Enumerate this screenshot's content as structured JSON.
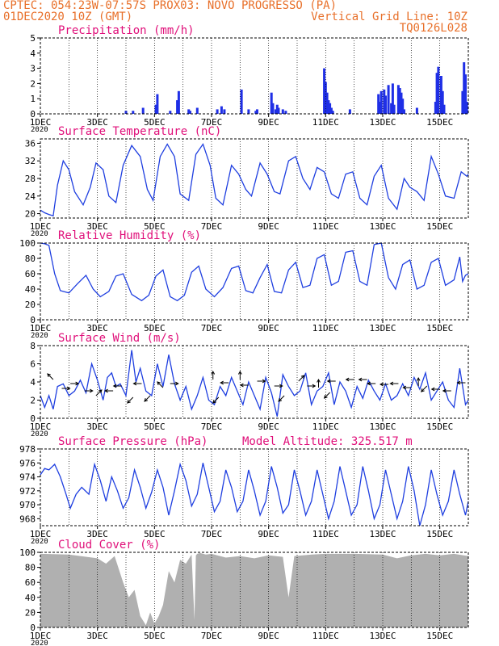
{
  "header": {
    "line1": "CPTEC:  054:23W-07:57S  PROX03: NOVO PROGRESSO (PA)",
    "line2_left": "01DEC2020 10Z (GMT)",
    "line2_right": "Vertical Grid Line: 10Z",
    "line3_right": "TQ0126L028"
  },
  "colors": {
    "header": "#e8702a",
    "title": "#e0107a",
    "series": "#1f3fe0",
    "bar": "#1f2fe6",
    "cloud": "#b0b0b0",
    "axis": "#000000"
  },
  "x_axis": {
    "start_day": 1,
    "end_day": 16,
    "tick_labels": [
      "1DEC",
      "3DEC",
      "5DEC",
      "7DEC",
      "9DEC",
      "11DEC",
      "13DEC",
      "15DEC"
    ],
    "tick_days": [
      1,
      3,
      5,
      7,
      9,
      11,
      13,
      15
    ],
    "year_label": "2020"
  },
  "chart_data": [
    {
      "id": "precip",
      "type": "bar",
      "title": "Precipitation (mm/h)",
      "ylim": [
        0,
        5
      ],
      "yticks": [
        0,
        1,
        2,
        3,
        4,
        5
      ],
      "x": [
        4.0,
        4.25,
        4.6,
        5.05,
        5.1,
        5.55,
        5.8,
        5.85,
        6.2,
        6.25,
        6.5,
        7.2,
        7.35,
        7.45,
        8.05,
        8.3,
        8.55,
        8.6,
        9.1,
        9.15,
        9.25,
        9.3,
        9.35,
        9.5,
        9.6,
        10.95,
        11.0,
        11.05,
        11.1,
        11.15,
        11.2,
        11.25,
        11.85,
        12.85,
        12.9,
        12.95,
        13.05,
        13.1,
        13.2,
        13.3,
        13.35,
        13.4,
        13.55,
        13.6,
        13.65,
        13.7,
        13.75,
        14.2,
        14.85,
        14.9,
        14.95,
        15.05,
        15.1,
        15.15,
        15.8,
        15.85,
        15.9,
        15.95
      ],
      "values": [
        0.2,
        0.2,
        0.4,
        0.6,
        1.3,
        0.2,
        0.9,
        1.5,
        0.3,
        0.2,
        0.4,
        0.3,
        0.5,
        0.3,
        1.6,
        0.3,
        0.2,
        0.3,
        1.4,
        0.7,
        0.3,
        0.6,
        0.4,
        0.3,
        0.2,
        3.0,
        2.1,
        1.4,
        0.9,
        0.7,
        0.4,
        0.2,
        0.3,
        1.3,
        0.8,
        1.5,
        1.6,
        1.2,
        1.9,
        0.7,
        2.0,
        0.6,
        1.9,
        1.7,
        1.4,
        1.0,
        0.3,
        0.4,
        0.8,
        2.7,
        3.1,
        2.5,
        1.5,
        0.6,
        1.5,
        3.4,
        2.6,
        0.8
      ]
    },
    {
      "id": "temperature",
      "type": "line",
      "title": "Surface Temperature (nC)",
      "ylim": [
        19,
        37
      ],
      "yticks": [
        20,
        24,
        28,
        32,
        36
      ],
      "x": [
        1.0,
        1.15,
        1.3,
        1.45,
        1.6,
        1.8,
        2.0,
        2.2,
        2.5,
        2.75,
        2.95,
        3.2,
        3.4,
        3.65,
        3.9,
        4.2,
        4.5,
        4.75,
        4.95,
        5.2,
        5.45,
        5.7,
        5.9,
        6.2,
        6.45,
        6.7,
        6.95,
        7.15,
        7.4,
        7.7,
        7.95,
        8.2,
        8.4,
        8.7,
        8.95,
        9.2,
        9.4,
        9.7,
        9.95,
        10.2,
        10.45,
        10.7,
        10.95,
        11.2,
        11.45,
        11.7,
        11.95,
        12.2,
        12.45,
        12.7,
        12.95,
        13.2,
        13.5,
        13.75,
        13.95,
        14.2,
        14.45,
        14.7,
        14.95,
        15.2,
        15.5,
        15.75,
        15.95,
        16.0
      ],
      "values": [
        20.8,
        20.2,
        19.8,
        19.5,
        26.5,
        32.0,
        30.0,
        25.0,
        22.0,
        26.0,
        31.5,
        30.0,
        24.0,
        22.5,
        31.0,
        35.5,
        33.0,
        25.5,
        23.0,
        33.0,
        35.8,
        33.0,
        24.5,
        23.0,
        33.5,
        35.8,
        31.0,
        23.5,
        22.0,
        31.0,
        29.0,
        25.5,
        24.0,
        31.5,
        29.0,
        25.0,
        24.5,
        32.0,
        33.0,
        28.0,
        25.5,
        30.5,
        29.5,
        24.5,
        23.5,
        29.0,
        29.5,
        23.5,
        22.0,
        28.5,
        31.0,
        23.5,
        21.0,
        28.0,
        26.0,
        25.0,
        23.0,
        33.0,
        29.0,
        24.0,
        23.5,
        29.5,
        28.5,
        29.0
      ]
    },
    {
      "id": "humidity",
      "type": "line",
      "title": "Relative Humidity (%)",
      "ylim": [
        0,
        100
      ],
      "yticks": [
        0,
        20,
        40,
        60,
        80,
        100
      ],
      "x": [
        1.0,
        1.15,
        1.3,
        1.5,
        1.7,
        2.0,
        2.3,
        2.6,
        2.85,
        3.1,
        3.4,
        3.65,
        3.9,
        4.2,
        4.55,
        4.8,
        5.05,
        5.3,
        5.55,
        5.8,
        6.05,
        6.3,
        6.55,
        6.8,
        7.1,
        7.4,
        7.7,
        7.95,
        8.2,
        8.45,
        8.7,
        8.95,
        9.2,
        9.45,
        9.7,
        9.95,
        10.2,
        10.45,
        10.7,
        10.95,
        11.2,
        11.45,
        11.7,
        11.95,
        12.2,
        12.45,
        12.7,
        12.95,
        13.2,
        13.45,
        13.7,
        13.95,
        14.2,
        14.45,
        14.7,
        14.95,
        15.2,
        15.5,
        15.7,
        15.8,
        15.9,
        16.0
      ],
      "values": [
        100,
        99,
        97,
        60,
        38,
        35,
        47,
        58,
        40,
        30,
        37,
        57,
        60,
        33,
        25,
        32,
        57,
        65,
        30,
        25,
        32,
        62,
        70,
        40,
        30,
        42,
        67,
        70,
        38,
        35,
        55,
        72,
        37,
        35,
        65,
        75,
        42,
        45,
        80,
        85,
        45,
        50,
        88,
        90,
        50,
        45,
        98,
        100,
        55,
        40,
        72,
        78,
        40,
        45,
        75,
        80,
        45,
        52,
        82,
        50,
        58,
        60
      ]
    },
    {
      "id": "wind",
      "type": "line",
      "title": "Surface Wind (m/s)",
      "ylim": [
        0,
        8
      ],
      "yticks": [
        0,
        2,
        4,
        6,
        8
      ],
      "x": [
        1.0,
        1.15,
        1.3,
        1.45,
        1.6,
        1.8,
        2.0,
        2.2,
        2.4,
        2.6,
        2.8,
        3.0,
        3.2,
        3.35,
        3.5,
        3.65,
        3.8,
        4.0,
        4.2,
        4.35,
        4.5,
        4.7,
        4.9,
        5.1,
        5.3,
        5.5,
        5.7,
        5.9,
        6.1,
        6.3,
        6.5,
        6.7,
        6.9,
        7.1,
        7.3,
        7.5,
        7.7,
        7.9,
        8.1,
        8.3,
        8.5,
        8.7,
        8.9,
        9.1,
        9.3,
        9.5,
        9.7,
        9.9,
        10.1,
        10.3,
        10.5,
        10.7,
        10.9,
        11.1,
        11.3,
        11.5,
        11.7,
        11.9,
        12.1,
        12.3,
        12.5,
        12.7,
        12.9,
        13.1,
        13.3,
        13.5,
        13.7,
        13.9,
        14.1,
        14.3,
        14.5,
        14.7,
        14.9,
        15.1,
        15.3,
        15.5,
        15.7,
        15.9,
        16.0
      ],
      "values": [
        2.5,
        1.2,
        2.5,
        1.0,
        3.5,
        3.8,
        2.5,
        3.0,
        4.2,
        2.8,
        6.0,
        4.2,
        2.0,
        4.5,
        5.0,
        3.5,
        3.8,
        2.5,
        7.5,
        4.0,
        5.5,
        3.0,
        2.5,
        6.0,
        3.5,
        7.0,
        3.8,
        2.0,
        3.5,
        1.0,
        2.5,
        4.5,
        2.0,
        1.5,
        3.5,
        2.5,
        4.5,
        3.0,
        1.5,
        4.0,
        2.5,
        1.0,
        4.5,
        2.8,
        0.2,
        4.8,
        3.5,
        2.5,
        3.0,
        5.0,
        1.5,
        3.0,
        3.5,
        5.0,
        1.5,
        4.0,
        3.0,
        1.2,
        3.5,
        2.2,
        4.2,
        3.0,
        2.0,
        3.8,
        2.0,
        2.5,
        3.8,
        2.5,
        4.5,
        3.2,
        5.0,
        2.0,
        3.0,
        4.0,
        2.0,
        1.2,
        5.5,
        1.5,
        2.0
      ]
    },
    {
      "id": "pressure",
      "type": "line",
      "title": "Surface Pressure (hPa)",
      "ylim": [
        967,
        978
      ],
      "yticks": [
        968,
        970,
        972,
        974,
        976,
        978
      ],
      "x": [
        1.0,
        1.15,
        1.3,
        1.5,
        1.7,
        1.9,
        2.05,
        2.25,
        2.45,
        2.7,
        2.9,
        3.1,
        3.3,
        3.5,
        3.7,
        3.9,
        4.1,
        4.3,
        4.5,
        4.7,
        4.9,
        5.1,
        5.3,
        5.5,
        5.7,
        5.9,
        6.1,
        6.3,
        6.5,
        6.7,
        6.9,
        7.1,
        7.3,
        7.5,
        7.7,
        7.9,
        8.1,
        8.3,
        8.5,
        8.7,
        8.9,
        9.1,
        9.3,
        9.5,
        9.7,
        9.9,
        10.1,
        10.3,
        10.5,
        10.7,
        10.9,
        11.1,
        11.3,
        11.5,
        11.7,
        11.9,
        12.1,
        12.3,
        12.5,
        12.7,
        12.9,
        13.1,
        13.3,
        13.5,
        13.7,
        13.9,
        14.1,
        14.3,
        14.5,
        14.7,
        14.9,
        15.1,
        15.3,
        15.5,
        15.7,
        15.9,
        16.0
      ],
      "values": [
        974.3,
        975.2,
        975.0,
        975.8,
        974.0,
        971.5,
        969.5,
        971.5,
        972.5,
        971.5,
        975.8,
        973.5,
        970.5,
        974.0,
        972.0,
        969.5,
        971.0,
        975.0,
        972.5,
        969.5,
        971.8,
        975.0,
        972.5,
        968.5,
        972.0,
        975.8,
        973.5,
        969.8,
        971.5,
        976.0,
        972.5,
        969.0,
        970.5,
        975.0,
        972.5,
        969.0,
        970.5,
        975.0,
        972.0,
        968.5,
        970.5,
        975.5,
        972.5,
        968.8,
        970.0,
        975.0,
        972.0,
        968.5,
        970.5,
        975.0,
        971.5,
        968.0,
        970.5,
        975.5,
        972.0,
        968.5,
        970.0,
        975.5,
        972.0,
        968.0,
        970.0,
        975.0,
        971.5,
        968.0,
        970.5,
        975.5,
        972.0,
        967.0,
        970.0,
        975.0,
        971.5,
        968.5,
        970.5,
        975.0,
        971.5,
        968.5,
        970.5
      ]
    },
    {
      "id": "cloud",
      "type": "area",
      "title": "Cloud Cover (%)",
      "ylim": [
        0,
        100
      ],
      "yticks": [
        0,
        20,
        40,
        60,
        80,
        100
      ],
      "x": [
        1.0,
        2.0,
        3.0,
        3.3,
        3.6,
        3.9,
        4.1,
        4.3,
        4.5,
        4.7,
        4.85,
        5.0,
        5.15,
        5.3,
        5.5,
        5.7,
        5.9,
        6.1,
        6.3,
        6.4,
        6.45,
        6.5,
        6.6,
        6.8,
        7.0,
        7.5,
        8.0,
        8.5,
        9.0,
        9.5,
        9.7,
        9.9,
        10.5,
        11.0,
        12.0,
        13.0,
        13.5,
        14.0,
        14.5,
        15.0,
        15.5,
        16.0
      ],
      "values": [
        98,
        97,
        92,
        85,
        95,
        60,
        40,
        50,
        15,
        3,
        20,
        5,
        15,
        30,
        75,
        60,
        90,
        85,
        97,
        10,
        96,
        98,
        99,
        97,
        98,
        93,
        95,
        92,
        96,
        94,
        40,
        95,
        97,
        98,
        98,
        97,
        92,
        96,
        98,
        96,
        98,
        95
      ]
    }
  ],
  "altitude_label": "Model Altitude: 325.517 m"
}
